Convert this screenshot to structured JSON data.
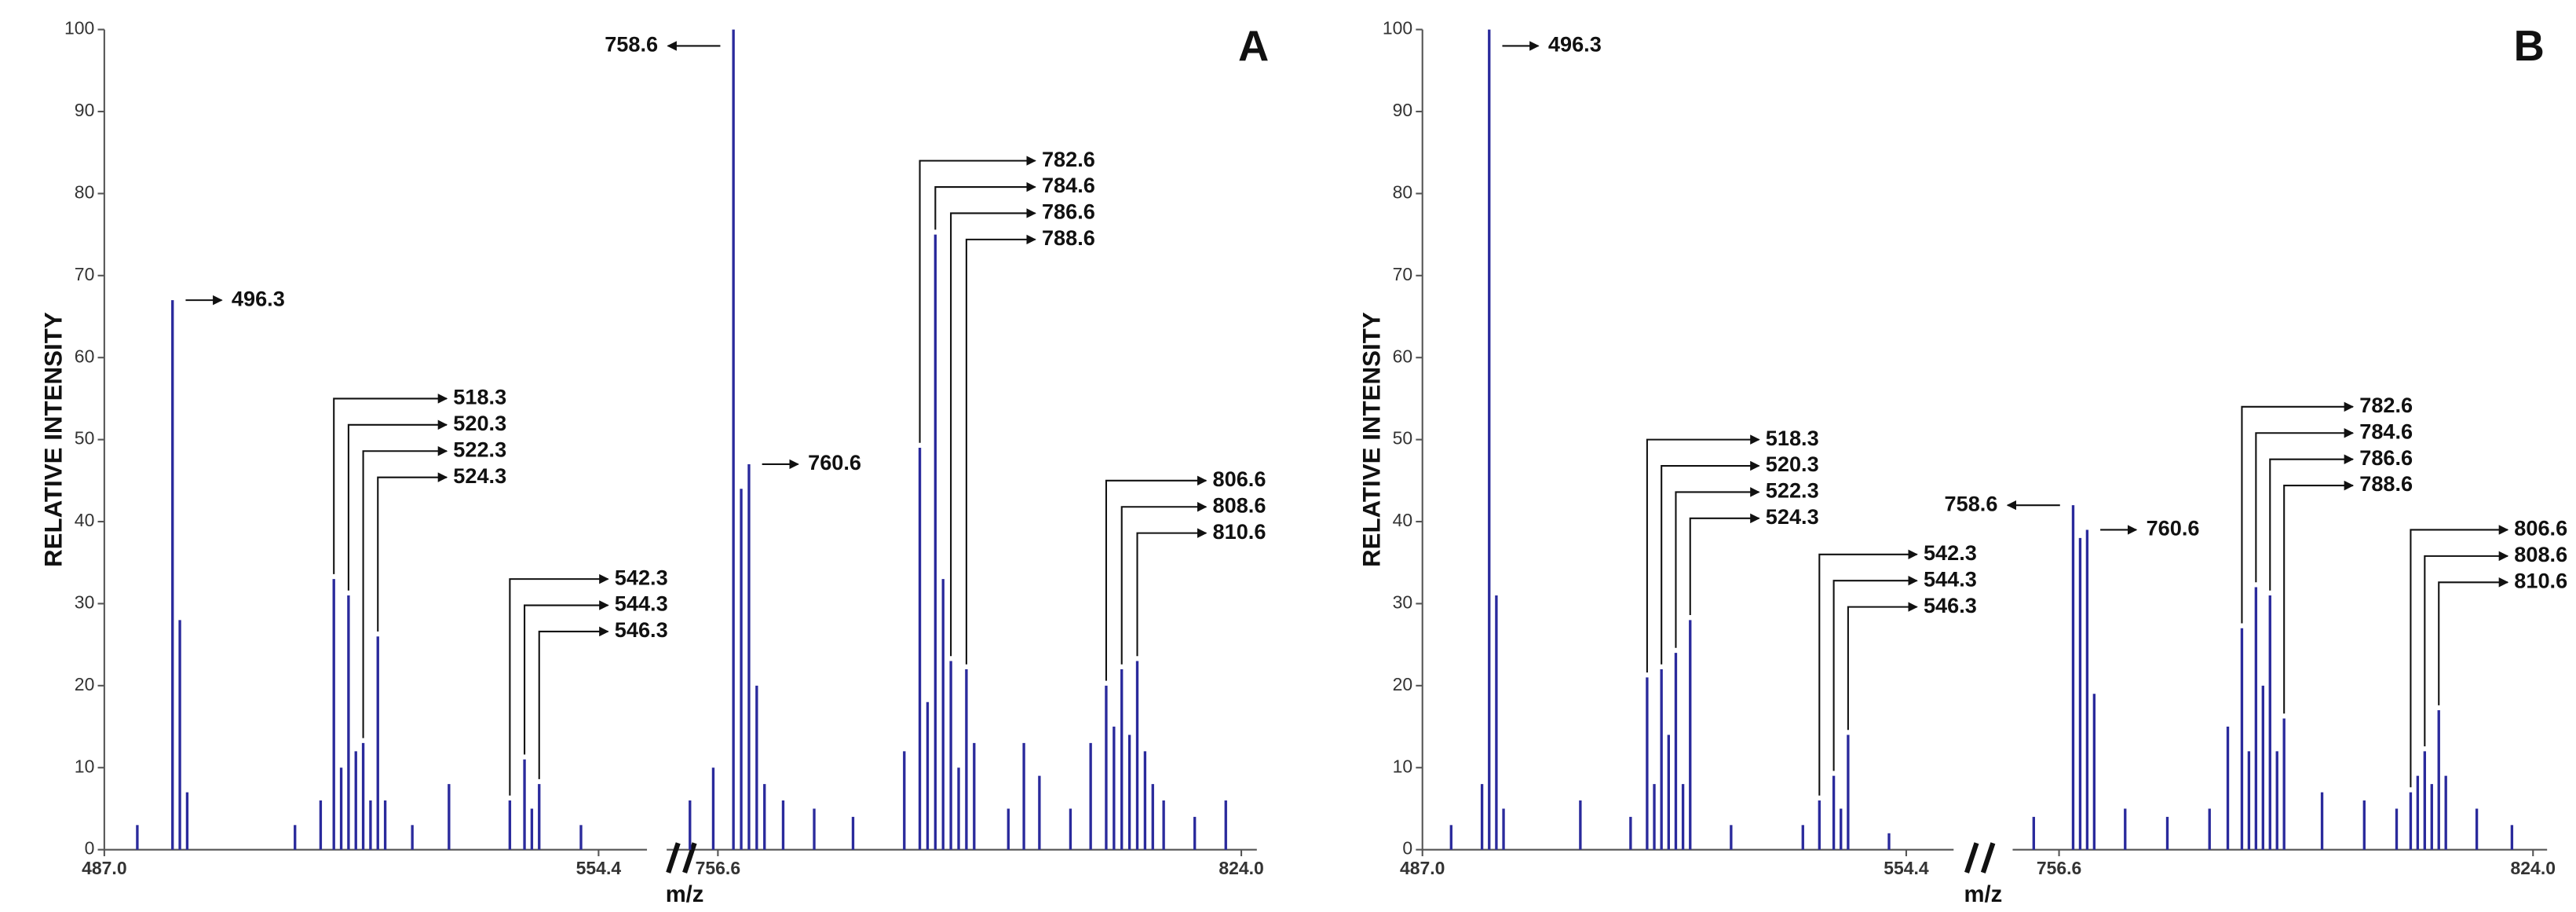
{
  "chart_data": [
    {
      "type": "spectrum",
      "panel_label": "A",
      "ylabel": "RELATIVE INTENSITY",
      "xlabel": "m/z",
      "color": "#2a2a9c",
      "ylim": [
        0,
        100
      ],
      "yticks": [
        0,
        10,
        20,
        30,
        40,
        50,
        60,
        70,
        80,
        90,
        100
      ],
      "segments": [
        {
          "xlim": [
            487.0,
            561.0
          ],
          "xticks": [
            {
              "value": 487.0,
              "label": "487.0"
            },
            554.4
          ]
        },
        {
          "xlim": [
            750.0,
            826.0
          ],
          "xticks": [
            756.6,
            {
              "value": 824.0,
              "label": "824.0"
            }
          ]
        }
      ],
      "x": [
        491.5,
        496.3,
        497.3,
        498.3,
        513.0,
        516.5,
        518.3,
        519.3,
        520.3,
        521.3,
        522.3,
        523.3,
        524.3,
        525.3,
        529.0,
        534.0,
        542.3,
        544.3,
        545.3,
        546.3,
        552.0,
        753.0,
        756.0,
        758.6,
        759.6,
        760.6,
        761.6,
        762.6,
        765.0,
        769.0,
        774.0,
        780.6,
        782.6,
        783.6,
        784.6,
        785.6,
        786.6,
        787.6,
        788.6,
        789.6,
        794.0,
        796.0,
        798.0,
        802.0,
        804.6,
        806.6,
        807.6,
        808.6,
        809.6,
        810.6,
        811.6,
        812.6,
        814.0,
        818.0,
        822.0
      ],
      "values": [
        3,
        67,
        28,
        7,
        3,
        6,
        33,
        10,
        31,
        12,
        13,
        6,
        26,
        6,
        3,
        8,
        6,
        11,
        5,
        8,
        3,
        6,
        10,
        100,
        44,
        47,
        20,
        8,
        6,
        5,
        4,
        12,
        49,
        18,
        75,
        33,
        23,
        10,
        22,
        13,
        5,
        13,
        9,
        5,
        13,
        20,
        15,
        22,
        14,
        23,
        12,
        8,
        6,
        4,
        6
      ],
      "annotations": [
        {
          "side": "right",
          "items": [
            {
              "x": 496.3,
              "label": "496.3"
            }
          ]
        },
        {
          "side": "right",
          "items": [
            {
              "x": 518.3,
              "label": "518.3"
            },
            {
              "x": 520.3,
              "label": "520.3"
            },
            {
              "x": 522.3,
              "label": "522.3"
            },
            {
              "x": 524.3,
              "label": "524.3"
            }
          ]
        },
        {
          "side": "right",
          "items": [
            {
              "x": 542.3,
              "label": "542.3"
            },
            {
              "x": 544.3,
              "label": "544.3"
            },
            {
              "x": 546.3,
              "label": "546.3"
            }
          ]
        },
        {
          "side": "left",
          "items": [
            {
              "x": 758.6,
              "label": "758.6"
            }
          ]
        },
        {
          "side": "right",
          "items": [
            {
              "x": 760.6,
              "label": "760.6"
            }
          ]
        },
        {
          "side": "right",
          "items": [
            {
              "x": 782.6,
              "label": "782.6"
            },
            {
              "x": 784.6,
              "label": "784.6"
            },
            {
              "x": 786.6,
              "label": "786.6"
            },
            {
              "x": 788.6,
              "label": "788.6"
            }
          ]
        },
        {
          "side": "right",
          "items": [
            {
              "x": 806.6,
              "label": "806.6"
            },
            {
              "x": 808.6,
              "label": "808.6"
            },
            {
              "x": 810.6,
              "label": "810.6"
            }
          ]
        }
      ]
    },
    {
      "type": "spectrum",
      "panel_label": "B",
      "ylabel": "RELATIVE INTENSITY",
      "xlabel": "m/z",
      "color": "#2a2a9c",
      "ylim": [
        0,
        100
      ],
      "yticks": [
        0,
        10,
        20,
        30,
        40,
        50,
        60,
        70,
        80,
        90,
        100
      ],
      "segments": [
        {
          "xlim": [
            487.0,
            561.0
          ],
          "xticks": [
            {
              "value": 487.0,
              "label": "487.0"
            },
            554.4
          ]
        },
        {
          "xlim": [
            750.0,
            826.0
          ],
          "xticks": [
            756.6,
            {
              "value": 824.0,
              "label": "824.0"
            }
          ]
        }
      ],
      "x": [
        491.0,
        495.3,
        496.3,
        497.3,
        498.3,
        509.0,
        516.0,
        518.3,
        519.3,
        520.3,
        521.3,
        522.3,
        523.3,
        524.3,
        530.0,
        540.0,
        542.3,
        544.3,
        545.3,
        546.3,
        552.0,
        753.0,
        758.6,
        759.6,
        760.6,
        761.6,
        766.0,
        772.0,
        778.0,
        780.6,
        782.6,
        783.6,
        784.6,
        785.6,
        786.6,
        787.6,
        788.6,
        794.0,
        800.0,
        804.6,
        806.6,
        807.6,
        808.6,
        809.6,
        810.6,
        811.6,
        816.0,
        821.0
      ],
      "values": [
        3,
        8,
        100,
        31,
        5,
        6,
        4,
        21,
        8,
        22,
        14,
        24,
        8,
        28,
        3,
        3,
        6,
        9,
        5,
        14,
        2,
        4,
        42,
        38,
        39,
        19,
        5,
        4,
        5,
        15,
        27,
        12,
        32,
        20,
        31,
        12,
        16,
        7,
        6,
        5,
        7,
        9,
        12,
        8,
        17,
        9,
        5,
        3
      ],
      "annotations": [
        {
          "side": "right",
          "items": [
            {
              "x": 496.3,
              "label": "496.3"
            }
          ]
        },
        {
          "side": "right",
          "items": [
            {
              "x": 518.3,
              "label": "518.3"
            },
            {
              "x": 520.3,
              "label": "520.3"
            },
            {
              "x": 522.3,
              "label": "522.3"
            },
            {
              "x": 524.3,
              "label": "524.3"
            }
          ]
        },
        {
          "side": "right",
          "items": [
            {
              "x": 542.3,
              "label": "542.3"
            },
            {
              "x": 544.3,
              "label": "544.3"
            },
            {
              "x": 546.3,
              "label": "546.3"
            }
          ]
        },
        {
          "side": "left",
          "items": [
            {
              "x": 758.6,
              "label": "758.6"
            }
          ]
        },
        {
          "side": "right",
          "items": [
            {
              "x": 760.6,
              "label": "760.6"
            }
          ]
        },
        {
          "side": "right",
          "items": [
            {
              "x": 782.6,
              "label": "782.6"
            },
            {
              "x": 784.6,
              "label": "784.6"
            },
            {
              "x": 786.6,
              "label": "786.6"
            },
            {
              "x": 788.6,
              "label": "788.6"
            }
          ]
        },
        {
          "side": "right",
          "items": [
            {
              "x": 806.6,
              "label": "806.6"
            },
            {
              "x": 808.6,
              "label": "808.6"
            },
            {
              "x": 810.6,
              "label": "810.6"
            }
          ]
        }
      ]
    }
  ]
}
